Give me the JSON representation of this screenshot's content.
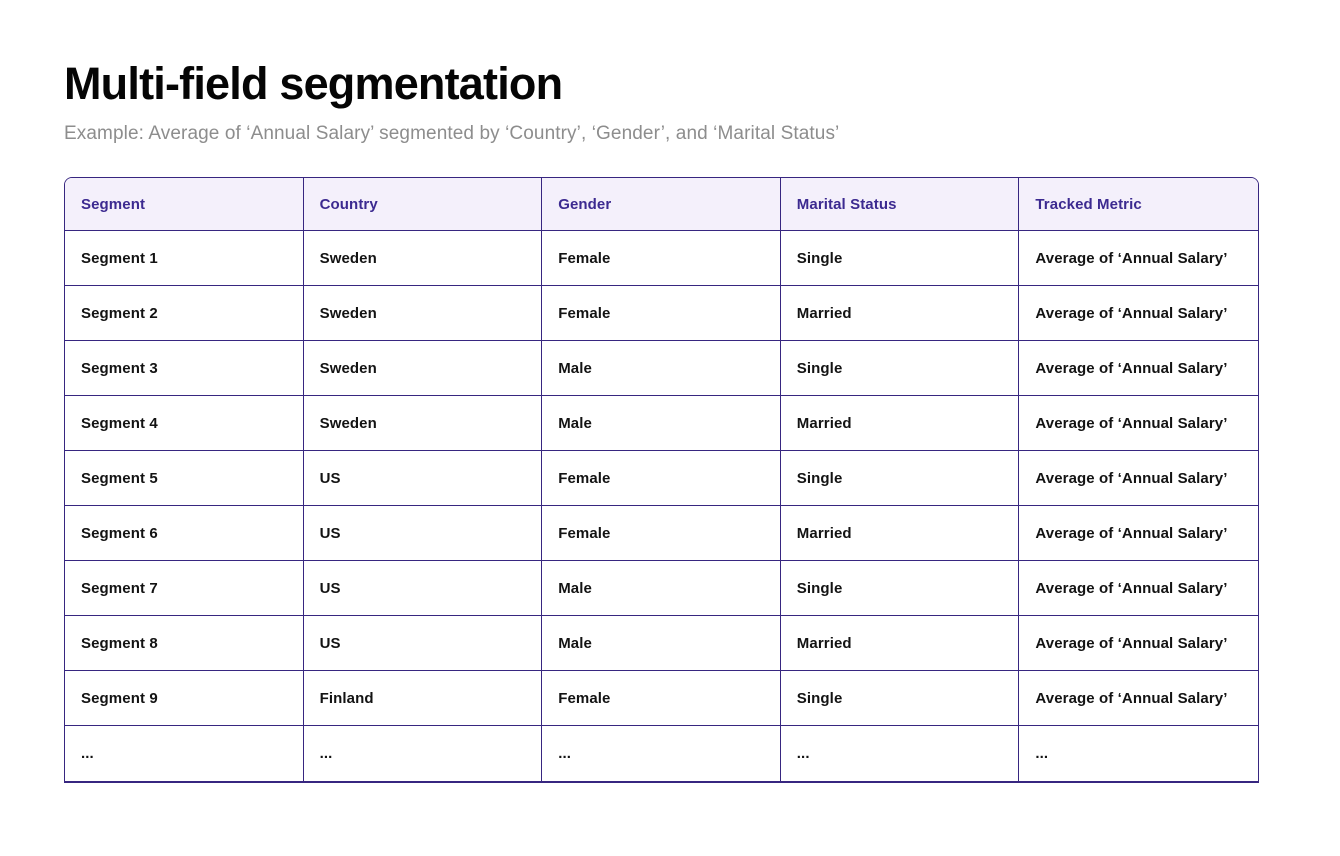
{
  "page": {
    "title": "Multi-field segmentation",
    "subtitle": "Example: Average of ‘Annual Salary’ segmented by ‘Country’, ‘Gender’, and ‘Marital Status’"
  },
  "colors": {
    "header_bg": "#f4f0fb",
    "header_text": "#3c2a90",
    "border": "#372680",
    "body_text": "#131313",
    "subtitle_text": "#8d8d8d",
    "title_text": "#050505"
  },
  "table": {
    "columns": [
      "Segment",
      "Country",
      "Gender",
      "Marital Status",
      "Tracked Metric"
    ],
    "rows": [
      [
        "Segment 1",
        "Sweden",
        "Female",
        "Single",
        "Average of ‘Annual Salary’"
      ],
      [
        "Segment 2",
        "Sweden",
        "Female",
        "Married",
        "Average of ‘Annual Salary’"
      ],
      [
        "Segment 3",
        "Sweden",
        "Male",
        "Single",
        "Average of ‘Annual Salary’"
      ],
      [
        "Segment 4",
        "Sweden",
        "Male",
        "Married",
        "Average of ‘Annual Salary’"
      ],
      [
        "Segment 5",
        "US",
        "Female",
        "Single",
        "Average of ‘Annual Salary’"
      ],
      [
        "Segment 6",
        "US",
        "Female",
        "Married",
        "Average of ‘Annual Salary’"
      ],
      [
        "Segment 7",
        "US",
        "Male",
        "Single",
        "Average of ‘Annual Salary’"
      ],
      [
        "Segment 8",
        "US",
        "Male",
        "Married",
        "Average of ‘Annual Salary’"
      ],
      [
        "Segment 9",
        "Finland",
        "Female",
        "Single",
        "Average of ‘Annual Salary’"
      ],
      [
        "...",
        "...",
        "...",
        "...",
        "..."
      ]
    ]
  }
}
